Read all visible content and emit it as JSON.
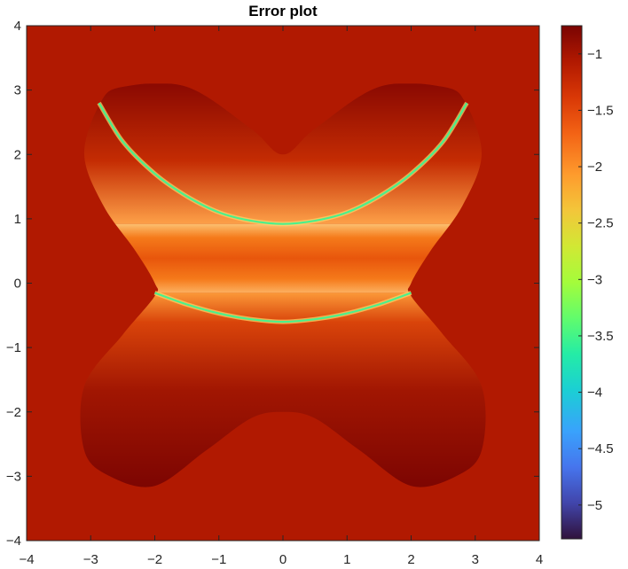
{
  "chart_data": {
    "type": "heatmap",
    "title": "Error plot",
    "xlabel": "",
    "ylabel": "",
    "xlim": [
      -4,
      4
    ],
    "ylim": [
      -4,
      4
    ],
    "x_ticks": [
      -4,
      -3,
      -2,
      -1,
      0,
      1,
      2,
      3,
      4
    ],
    "y_ticks": [
      -4,
      -3,
      -2,
      -1,
      0,
      1,
      2,
      3,
      4
    ],
    "grid": false,
    "colormap": "turbo",
    "colorbar": {
      "location": "right",
      "limits": [
        -5.3,
        -0.75
      ],
      "ticks": [
        -5,
        -4.5,
        -4,
        -3.5,
        -3,
        -2.5,
        -2,
        -1.5,
        -1
      ]
    },
    "background_value": -1.2,
    "region": {
      "description_points_top": [
        [
          -2.85,
          2.8
        ],
        [
          -2.5,
          3.05
        ],
        [
          -1.5,
          3.05
        ],
        [
          -0.5,
          2.4
        ],
        [
          0,
          2.0
        ],
        [
          0.5,
          2.4
        ],
        [
          1.5,
          3.05
        ],
        [
          2.5,
          3.05
        ],
        [
          2.85,
          2.8
        ],
        [
          3.1,
          2.0
        ],
        [
          2.8,
          1.2
        ],
        [
          2.3,
          0.5
        ],
        [
          2.0,
          0.0
        ]
      ],
      "description_points_bottom": [
        [
          2.0,
          -0.2
        ],
        [
          2.5,
          -0.8
        ],
        [
          3.1,
          -1.6
        ],
        [
          3.1,
          -2.6
        ],
        [
          2.7,
          -3.0
        ],
        [
          2.0,
          -3.15
        ],
        [
          1.2,
          -2.6
        ],
        [
          0.5,
          -2.1
        ],
        [
          0,
          -2.0
        ],
        [
          -0.5,
          -2.1
        ],
        [
          -1.2,
          -2.6
        ],
        [
          -2.0,
          -3.15
        ],
        [
          -2.7,
          -3.0
        ],
        [
          -3.1,
          -2.6
        ],
        [
          -3.1,
          -1.6
        ],
        [
          -2.5,
          -0.8
        ],
        [
          -2.0,
          -0.2
        ],
        [
          -2.0,
          0.0
        ],
        [
          -2.3,
          0.5
        ],
        [
          -2.8,
          1.2
        ],
        [
          -3.1,
          2.0
        ]
      ]
    },
    "min_error_curves": [
      {
        "points": [
          [
            -2.87,
            2.8
          ],
          [
            -2.5,
            2.2
          ],
          [
            -2.0,
            1.7
          ],
          [
            -1.5,
            1.35
          ],
          [
            -1.0,
            1.1
          ],
          [
            -0.5,
            0.97
          ],
          [
            0,
            0.92
          ],
          [
            0.5,
            0.97
          ],
          [
            1.0,
            1.1
          ],
          [
            1.5,
            1.35
          ],
          [
            2.0,
            1.7
          ],
          [
            2.5,
            2.2
          ],
          [
            2.87,
            2.8
          ]
        ]
      },
      {
        "points": [
          [
            -2.0,
            -0.15
          ],
          [
            -1.5,
            -0.33
          ],
          [
            -1.0,
            -0.47
          ],
          [
            -0.5,
            -0.56
          ],
          [
            0,
            -0.6
          ],
          [
            0.5,
            -0.56
          ],
          [
            1.0,
            -0.47
          ],
          [
            1.5,
            -0.33
          ],
          [
            2.0,
            -0.15
          ]
        ]
      }
    ]
  }
}
